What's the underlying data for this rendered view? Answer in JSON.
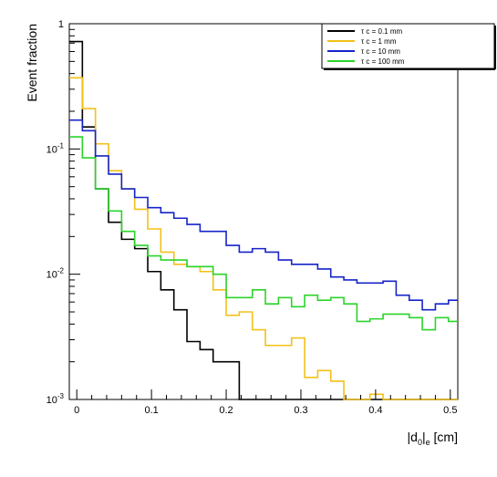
{
  "chart_data": {
    "type": "line",
    "title": "",
    "xlabel": "|d_0|_e [cm]",
    "xlabel_main": "|d",
    "xlabel_sub": "0",
    "xlabel_sub2": "e",
    "xlabel_unit": " [cm]",
    "ylabel": "Event fraction",
    "xlim": [
      -0.01,
      0.51
    ],
    "ylim": [
      0.001,
      1
    ],
    "y_scale": "log",
    "x_ticks": [
      {
        "value": 0,
        "label": "0"
      },
      {
        "value": 0.1,
        "label": "0.1"
      },
      {
        "value": 0.2,
        "label": "0.2"
      },
      {
        "value": 0.3,
        "label": "0.3"
      },
      {
        "value": 0.4,
        "label": "0.4"
      },
      {
        "value": 0.5,
        "label": "0.5"
      }
    ],
    "y_ticks": [
      {
        "value": 0.001,
        "base": "10",
        "exp": "-3"
      },
      {
        "value": 0.01,
        "base": "10",
        "exp": "-2"
      },
      {
        "value": 0.1,
        "base": "10",
        "exp": "-1"
      },
      {
        "value": 1,
        "base": "1",
        "exp": ""
      }
    ],
    "grid": false,
    "legend_position": "top-right",
    "bin_edges": [
      -0.01,
      0.0075,
      0.025,
      0.0425,
      0.06,
      0.0775,
      0.095,
      0.1125,
      0.13,
      0.1475,
      0.165,
      0.1825,
      0.2,
      0.2175,
      0.235,
      0.2525,
      0.27,
      0.2875,
      0.305,
      0.3225,
      0.34,
      0.3575,
      0.375,
      0.3925,
      0.41,
      0.4275,
      0.445,
      0.4625,
      0.48,
      0.4975,
      0.51
    ],
    "series": [
      {
        "name": "τ c = 0.1 mm",
        "color": "#000000",
        "values": [
          0.72,
          0.15,
          0.048,
          0.026,
          0.019,
          0.016,
          0.0105,
          0.0075,
          0.0052,
          0.0029,
          0.0025,
          0.002,
          0.002,
          0.001,
          0.001,
          0.001,
          0.001,
          0.001,
          0.001,
          0.001,
          0.001,
          0.001,
          0.001,
          0.001,
          0.001,
          0.001,
          0.001,
          0.001,
          0.001,
          0.001
        ]
      },
      {
        "name": "τ c = 1 mm",
        "color": "#f2c118",
        "values": [
          0.37,
          0.21,
          0.11,
          0.067,
          0.048,
          0.033,
          0.023,
          0.015,
          0.012,
          0.0115,
          0.0105,
          0.0075,
          0.0047,
          0.005,
          0.0036,
          0.0027,
          0.0027,
          0.0031,
          0.0015,
          0.0017,
          0.0014,
          0.001,
          0.001,
          0.0011,
          0.001,
          0.001,
          0.001,
          0.001,
          0.001,
          0.001
        ]
      },
      {
        "name": "τ c = 10 mm",
        "color": "#1624c8",
        "values": [
          0.17,
          0.14,
          0.088,
          0.063,
          0.048,
          0.041,
          0.034,
          0.031,
          0.028,
          0.025,
          0.022,
          0.022,
          0.017,
          0.015,
          0.016,
          0.015,
          0.013,
          0.012,
          0.012,
          0.011,
          0.0095,
          0.009,
          0.0085,
          0.0085,
          0.0088,
          0.0068,
          0.0062,
          0.0052,
          0.0058,
          0.0062
        ]
      },
      {
        "name": "τ c = 100 mm",
        "color": "#2ad42a",
        "values": [
          0.125,
          0.085,
          0.048,
          0.032,
          0.022,
          0.017,
          0.014,
          0.013,
          0.013,
          0.0115,
          0.0115,
          0.01,
          0.0065,
          0.0065,
          0.0075,
          0.0058,
          0.0065,
          0.0055,
          0.0068,
          0.0062,
          0.0065,
          0.0058,
          0.0042,
          0.0044,
          0.0048,
          0.0048,
          0.0045,
          0.0036,
          0.0045,
          0.0042
        ]
      }
    ]
  }
}
